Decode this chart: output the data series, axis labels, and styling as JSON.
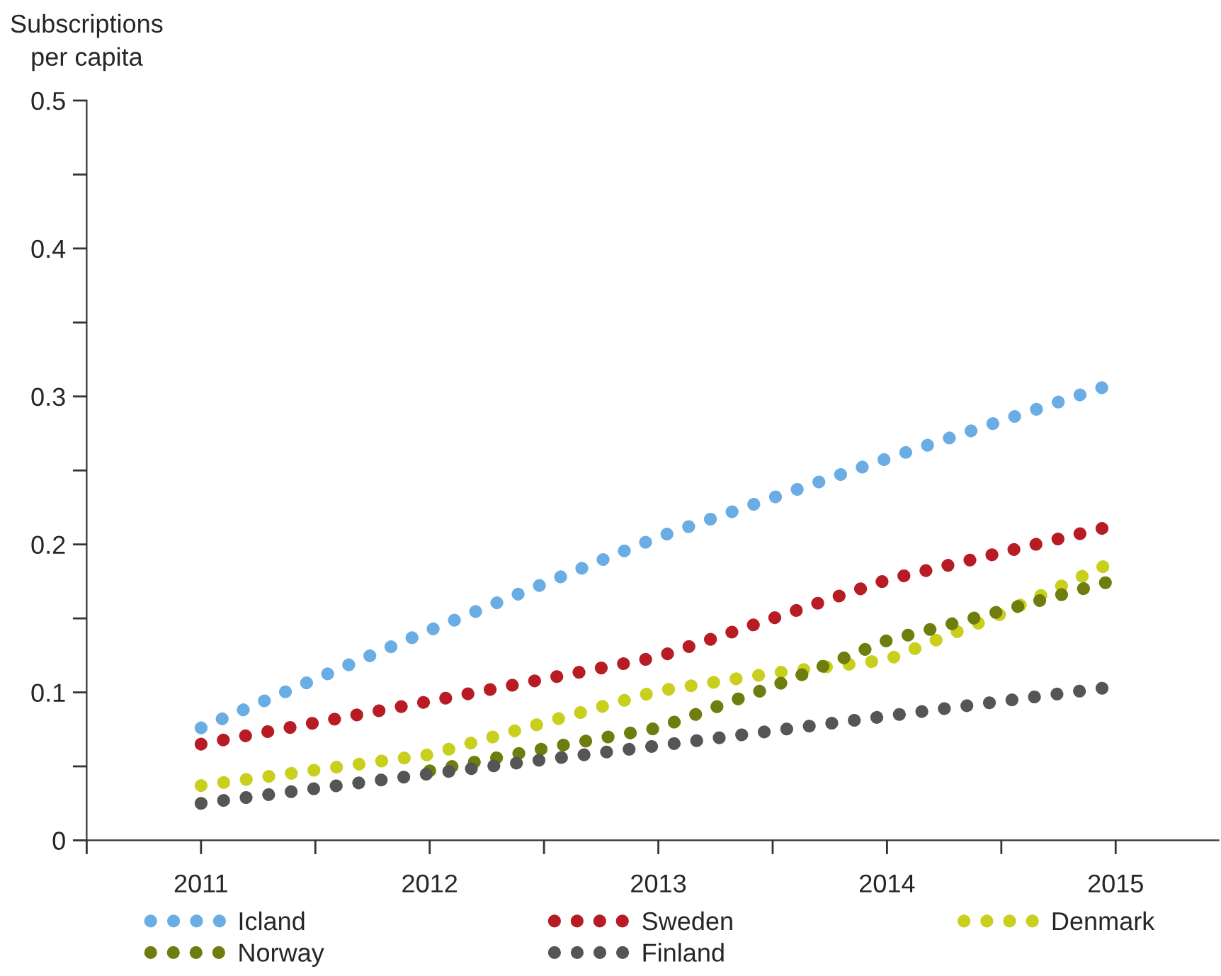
{
  "chart_data": {
    "type": "line",
    "ylabel": "Subscriptions\nper capita",
    "line_style": "dotted",
    "marker": "none",
    "grid": false,
    "legend": "bottom",
    "xlim": [
      2010.5,
      2015.45
    ],
    "xticks": [
      {
        "value": 2011,
        "label": "2011"
      },
      {
        "value": 2012,
        "label": "2012"
      },
      {
        "value": 2013,
        "label": "2013"
      },
      {
        "value": 2014,
        "label": "2014"
      },
      {
        "value": 2015,
        "label": "2015"
      },
      {
        "value": 2010.5,
        "label": null
      },
      {
        "value": 2011.5,
        "label": null
      },
      {
        "value": 2012.5,
        "label": null
      },
      {
        "value": 2013.5,
        "label": null
      },
      {
        "value": 2014.5,
        "label": null
      }
    ],
    "ylim": [
      0,
      0.5
    ],
    "yticks": [
      0,
      0.1,
      0.2,
      0.3,
      0.4,
      0.5,
      {
        "value": 0.05,
        "label": null
      },
      {
        "value": 0.15,
        "label": null
      },
      {
        "value": 0.25,
        "label": null
      },
      {
        "value": 0.35,
        "label": null
      },
      {
        "value": 0.45,
        "label": null
      }
    ],
    "series": [
      {
        "name": "Icland",
        "color": "#6aade4",
        "x": [
          2011,
          2012,
          2013,
          2014,
          2015
        ],
        "values": [
          0.076,
          0.142,
          0.205,
          0.258,
          0.309
        ]
      },
      {
        "name": "Sweden",
        "color": "#b71c24",
        "x": [
          2011,
          2012,
          2013,
          2014,
          2015
        ],
        "values": [
          0.065,
          0.094,
          0.124,
          0.176,
          0.213
        ]
      },
      {
        "name": "Denmark",
        "color": "#c8cf1c",
        "x": [
          2011,
          2012,
          2013,
          2013.5,
          2014,
          2014.5,
          2015
        ],
        "values": [
          0.037,
          0.058,
          0.101,
          0.113,
          0.122,
          0.153,
          0.189
        ]
      },
      {
        "name": "Norway",
        "color": "#6e7d0d",
        "x": [
          2012,
          2012.5,
          2013,
          2013.5,
          2014,
          2014.5,
          2015
        ],
        "values": [
          0.047,
          0.062,
          0.076,
          0.104,
          0.135,
          0.155,
          0.176
        ]
      },
      {
        "name": "Finland",
        "color": "#555555",
        "x": [
          2011,
          2012,
          2013,
          2014,
          2015
        ],
        "values": [
          0.025,
          0.045,
          0.064,
          0.084,
          0.104
        ]
      }
    ]
  }
}
